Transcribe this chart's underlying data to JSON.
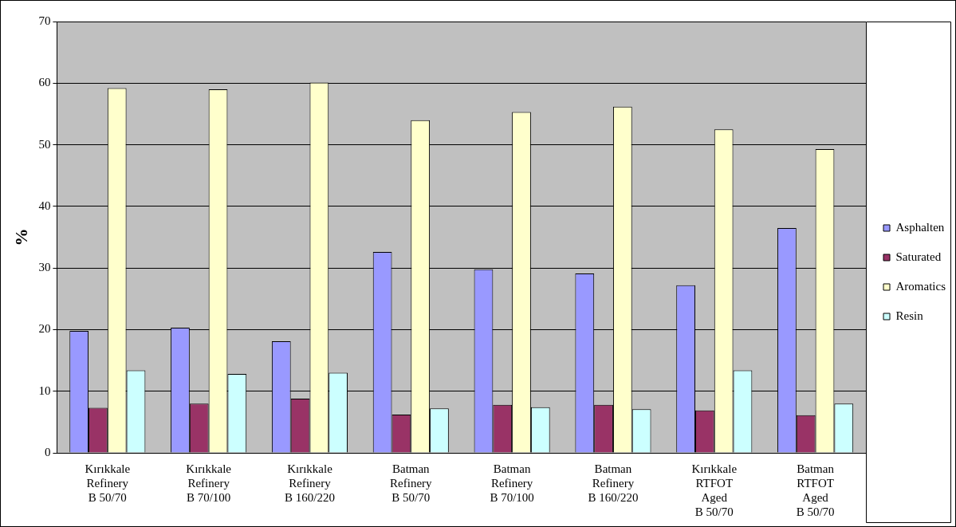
{
  "chart_data": {
    "type": "bar",
    "ylabel": "%",
    "categories": [
      "Kırıkkale\nRefinery\nB 50/70",
      "Kırıkkale\nRefinery\nB 70/100",
      "Kırıkkale\nRefinery\nB 160/220",
      "Batman\nRefinery\nB 50/70",
      "Batman\nRefinery\nB 70/100",
      "Batman\nRefinery\nB 160/220",
      "Kırıkkale\nRTFOT\nAged\nB 50/70",
      "Batman\nRTFOT\nAged\nB 50/70"
    ],
    "series": [
      {
        "name": "Asphalten",
        "color": "#9999ff",
        "values": [
          19.8,
          20.3,
          18.1,
          32.6,
          29.8,
          29.1,
          27.2,
          36.5
        ]
      },
      {
        "name": "Saturated",
        "color": "#993366",
        "values": [
          7.3,
          8.0,
          8.8,
          6.2,
          7.8,
          7.8,
          6.9,
          6.1
        ]
      },
      {
        "name": "Aromatics",
        "color": "#ffffcc",
        "values": [
          59.2,
          59.0,
          60.1,
          54.0,
          55.3,
          56.2,
          52.5,
          49.3
        ]
      },
      {
        "name": "Resin",
        "color": "#ccffff",
        "values": [
          13.4,
          12.8,
          13.0,
          7.2,
          7.4,
          7.1,
          13.4,
          8.0
        ]
      }
    ],
    "ylim": [
      0,
      70
    ],
    "yticks": [
      0,
      10,
      20,
      30,
      40,
      50,
      60,
      70
    ],
    "grid": "y",
    "legend": "right"
  }
}
